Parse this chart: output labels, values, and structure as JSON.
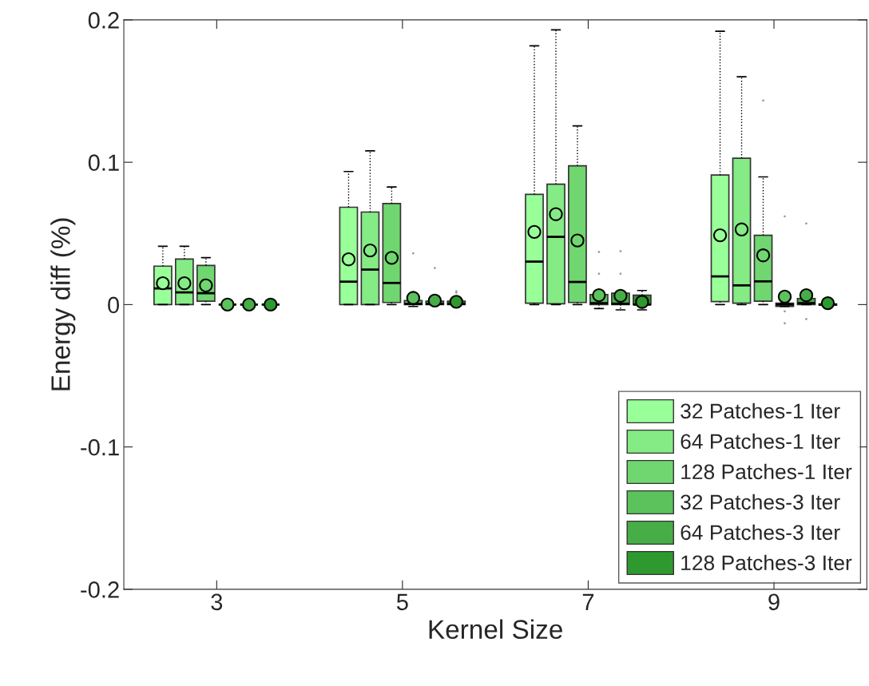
{
  "chart_data": {
    "type": "box",
    "xlabel": "Kernel Size",
    "ylabel": "Energy diff (%)",
    "categories": [
      "3",
      "5",
      "7",
      "9"
    ],
    "ylim": [
      -0.2,
      0.2
    ],
    "yticks": [
      -0.2,
      -0.1,
      0,
      0.1,
      0.2
    ],
    "grid": false,
    "legend": "bottom right",
    "line_style": "dotted",
    "marker": "circle",
    "series": [
      {
        "name": "32 Patches-1 Iter",
        "color": "#99ff99",
        "boxes": [
          {
            "low": 0,
            "q1": 0,
            "median": 0.0114,
            "q3": 0.027,
            "high": 0.041,
            "mean": 0.015
          },
          {
            "low": 0,
            "q1": 0,
            "median": 0.0161,
            "q3": 0.0684,
            "high": 0.0935,
            "mean": 0.0318
          },
          {
            "low": 0,
            "q1": 0.001,
            "median": 0.0302,
            "q3": 0.0774,
            "high": 0.1818,
            "mean": 0.0511
          },
          {
            "low": 0,
            "q1": 0.0021,
            "median": 0.0198,
            "q3": 0.091,
            "high": 0.192,
            "mean": 0.0487
          }
        ]
      },
      {
        "name": "64 Patches-1 Iter",
        "color": "#85eb85",
        "boxes": [
          {
            "low": 0,
            "q1": 0,
            "median": 0.0086,
            "q3": 0.032,
            "high": 0.041,
            "mean": 0.015
          },
          {
            "low": 0,
            "q1": 0,
            "median": 0.0246,
            "q3": 0.065,
            "high": 0.108,
            "mean": 0.038
          },
          {
            "low": 0,
            "q1": 0.0006,
            "median": 0.0476,
            "q3": 0.0846,
            "high": 0.193,
            "mean": 0.0635
          },
          {
            "low": 0,
            "q1": 0.001,
            "median": 0.0135,
            "q3": 0.1028,
            "high": 0.16,
            "mean": 0.0528
          }
        ]
      },
      {
        "name": "128 Patches-1 Iter",
        "color": "#70d670",
        "boxes": [
          {
            "low": 0,
            "q1": 0.0024,
            "median": 0.008,
            "q3": 0.0275,
            "high": 0.033,
            "mean": 0.0135
          },
          {
            "low": 0,
            "q1": 0.0015,
            "median": 0.0152,
            "q3": 0.071,
            "high": 0.0826,
            "mean": 0.0328
          },
          {
            "low": 0,
            "q1": 0.0015,
            "median": 0.0159,
            "q3": 0.0975,
            "high": 0.1255,
            "mean": 0.045
          },
          {
            "low": 0,
            "q1": 0.0024,
            "median": 0.0163,
            "q3": 0.0487,
            "high": 0.0897,
            "mean": 0.0346,
            "outliers": [
              0.1434
            ]
          }
        ]
      },
      {
        "name": "32 Patches-3 Iter",
        "color": "#5cc25c",
        "boxes": [
          {
            "low": 0,
            "q1": 0,
            "median": 0,
            "q3": 0,
            "high": 0,
            "mean": 0
          },
          {
            "low": -0.0013,
            "q1": 0,
            "median": 0.0005,
            "q3": 0.0028,
            "high": 0.0028,
            "mean": 0.0047,
            "outliers": [
              0.036
            ]
          },
          {
            "low": -0.0028,
            "q1": 0,
            "median": 0.001,
            "q3": 0.0071,
            "high": 0.0071,
            "mean": 0.0066,
            "outliers": [
              0.037,
              0.0217
            ]
          },
          {
            "low": -0.0013,
            "q1": -0.0013,
            "median": 0,
            "q3": 0.001,
            "high": 0.001,
            "mean": 0.0056,
            "outliers": [
              0.062,
              -0.0047,
              -0.0131
            ]
          }
        ]
      },
      {
        "name": "64 Patches-3 Iter",
        "color": "#47ad47",
        "boxes": [
          {
            "low": 0,
            "q1": 0,
            "median": 0,
            "q3": 0,
            "high": 0,
            "mean": 0
          },
          {
            "low": 0,
            "q1": 0,
            "median": 0.0005,
            "q3": 0.0024,
            "high": 0.0024,
            "mean": 0.0028,
            "outliers": [
              0.0257
            ]
          },
          {
            "low": -0.0037,
            "q1": 0,
            "median": 0.0006,
            "q3": 0.008,
            "high": 0.008,
            "mean": 0.0062,
            "outliers": [
              0.0375,
              0.0217
            ]
          },
          {
            "low": 0,
            "q1": 0,
            "median": 0.001,
            "q3": 0.0043,
            "high": 0.0043,
            "mean": 0.0066,
            "outliers": [
              0.057,
              -0.0101
            ]
          }
        ]
      },
      {
        "name": "128 Patches-3 Iter",
        "color": "#2e992e",
        "boxes": [
          {
            "low": 0,
            "q1": 0,
            "median": 0,
            "q3": 0,
            "high": 0,
            "mean": 0
          },
          {
            "low": 0,
            "q1": 0,
            "median": 0.0005,
            "q3": 0.0024,
            "high": 0.0024,
            "mean": 0.002,
            "outliers": [
              0.0094,
              0.0084
            ]
          },
          {
            "low": -0.0037,
            "q1": 0,
            "median": 0,
            "q3": 0.0066,
            "high": 0.0099,
            "mean": 0.0019
          },
          {
            "low": 0,
            "q1": -0.0005,
            "median": 0,
            "q3": 0.0005,
            "high": 0.0005,
            "mean": 0.001
          }
        ]
      }
    ]
  }
}
